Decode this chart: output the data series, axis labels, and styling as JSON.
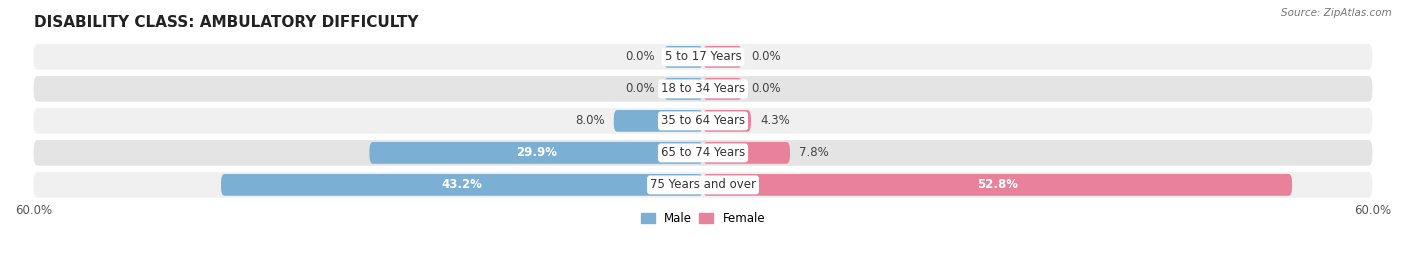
{
  "title": "DISABILITY CLASS: AMBULATORY DIFFICULTY",
  "source_text": "Source: ZipAtlas.com",
  "categories": [
    "5 to 17 Years",
    "18 to 34 Years",
    "35 to 64 Years",
    "65 to 74 Years",
    "75 Years and over"
  ],
  "male_values": [
    0.0,
    0.0,
    8.0,
    29.9,
    43.2
  ],
  "female_values": [
    0.0,
    0.0,
    4.3,
    7.8,
    52.8
  ],
  "x_max": 60.0,
  "male_color": "#7bafd4",
  "female_color": "#e8829a",
  "male_label": "Male",
  "female_label": "Female",
  "row_bg_colors": [
    "#f0f0f0",
    "#e4e4e4"
  ],
  "title_fontsize": 11,
  "label_fontsize": 8.5,
  "value_fontsize": 8.5,
  "category_fontsize": 8.5,
  "background_color": "#ffffff",
  "min_bar_pct": 3.5
}
